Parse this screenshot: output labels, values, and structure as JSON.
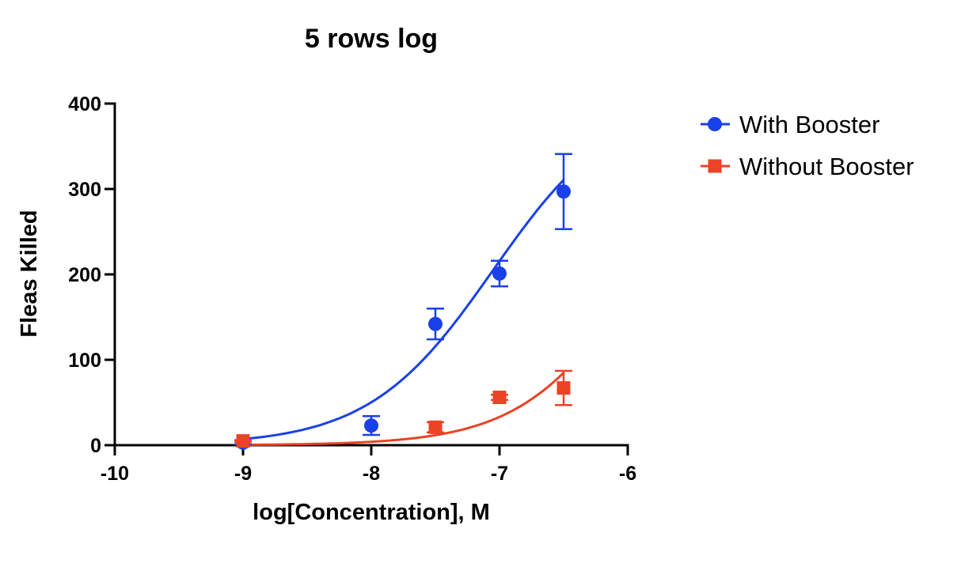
{
  "chart_data": {
    "type": "scatter",
    "title": "5 rows log",
    "xlabel": "log[Concentration], M",
    "ylabel": "Fleas Killed",
    "xlim": [
      -10,
      -6
    ],
    "ylim": [
      0,
      400
    ],
    "x_ticks": [
      "-10",
      "-9",
      "-8",
      "-7",
      "-6"
    ],
    "y_ticks": [
      "0",
      "100",
      "200",
      "300",
      "400"
    ],
    "grid": false,
    "legend_position": "top-right",
    "series": [
      {
        "name": "With Booster",
        "color": "#1a40e8",
        "marker": "circle",
        "x": [
          -9,
          -8,
          -7.5,
          -7,
          -6.5
        ],
        "y": [
          3,
          23,
          142,
          201,
          297
        ],
        "err": [
          2,
          11,
          18,
          15,
          44
        ],
        "fit": {
          "bottom": 0,
          "top": 410,
          "log_ec50": -7.05,
          "hill": 0.9
        }
      },
      {
        "name": "Without Booster",
        "color": "#ea4325",
        "marker": "square",
        "x": [
          -9,
          -7.5,
          -7,
          -6.5
        ],
        "y": [
          5,
          21,
          56,
          67
        ],
        "err": [
          1,
          6,
          3,
          20
        ],
        "fit": {
          "bottom": 0,
          "top": 400,
          "log_ec50": -5.9,
          "hill": 0.95
        }
      }
    ]
  }
}
